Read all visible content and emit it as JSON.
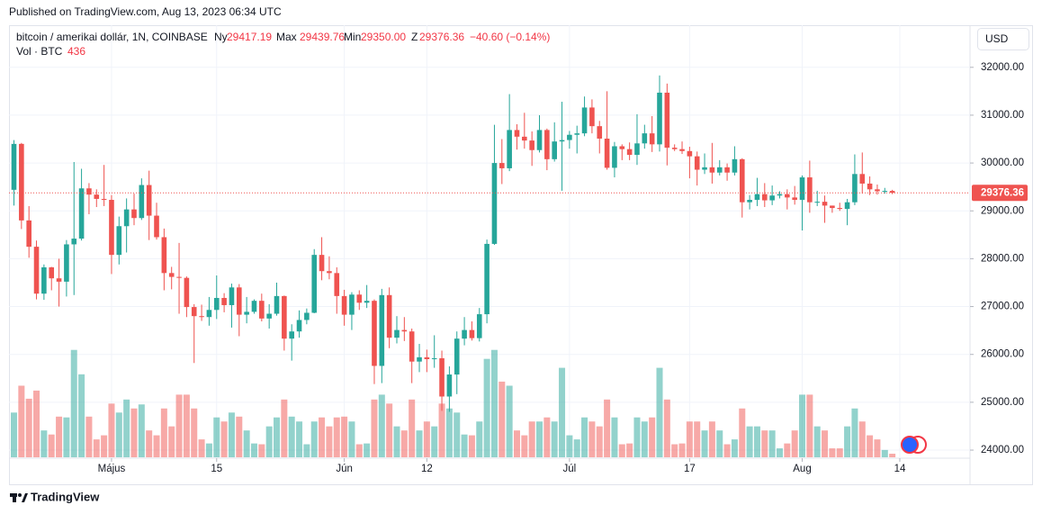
{
  "chart_data": {
    "type": "candlestick",
    "published": "Published on TradingView.com, Aug 13, 2023 06:34 UTC",
    "title": "bitcoin / amerikai dollár, 1N, COINBASE",
    "legend_keys": [
      "Ny",
      "Max",
      "Min",
      "Z"
    ],
    "legend_values": [
      "29417.19",
      "29439.76",
      "29350.00",
      "29376.36"
    ],
    "change_label": "−40.60 (−0.14%)",
    "volume_title": "Vol · BTC",
    "volume_label": "436",
    "currency": "USD",
    "last_price_label": "29376.36",
    "brand": "TradingView",
    "up_color": "#26a69a",
    "down_color": "#ef5350",
    "grid": true,
    "ylim": [
      23850,
      32880
    ],
    "yticks": [
      {
        "value": 24000,
        "label": "24000.00"
      },
      {
        "value": 25000,
        "label": "25000.00"
      },
      {
        "value": 26000,
        "label": "26000.00"
      },
      {
        "value": 27000,
        "label": "27000.00"
      },
      {
        "value": 28000,
        "label": "28000.00"
      },
      {
        "value": 29000,
        "label": "29000.00"
      },
      {
        "value": 30000,
        "label": "30000.00"
      },
      {
        "value": 31000,
        "label": "31000.00"
      },
      {
        "value": 32000,
        "label": "32000.00"
      }
    ],
    "vlim": [
      0,
      13500
    ],
    "xticks": [
      {
        "value": "05-01",
        "label": "Május"
      },
      {
        "value": "05-15",
        "label": "15"
      },
      {
        "value": "06-01",
        "label": "Jún"
      },
      {
        "value": "06-12",
        "label": "12"
      },
      {
        "value": "07-01",
        "label": "Júl"
      },
      {
        "value": "07-17",
        "label": "17"
      },
      {
        "value": "08-01",
        "label": "Aug"
      },
      {
        "value": "08-14",
        "label": "14"
      }
    ],
    "x": [
      "04-18",
      "04-19",
      "04-20",
      "04-21",
      "04-22",
      "04-23",
      "04-24",
      "04-25",
      "04-26",
      "04-27",
      "04-28",
      "04-29",
      "04-30",
      "05-01",
      "05-02",
      "05-03",
      "05-04",
      "05-05",
      "05-06",
      "05-07",
      "05-08",
      "05-09",
      "05-10",
      "05-11",
      "05-12",
      "05-13",
      "05-14",
      "05-15",
      "05-16",
      "05-17",
      "05-18",
      "05-19",
      "05-20",
      "05-21",
      "05-22",
      "05-23",
      "05-24",
      "05-25",
      "05-26",
      "05-27",
      "05-28",
      "05-29",
      "05-30",
      "05-31",
      "06-01",
      "06-02",
      "06-03",
      "06-04",
      "06-05",
      "06-06",
      "06-07",
      "06-08",
      "06-09",
      "06-10",
      "06-11",
      "06-12",
      "06-13",
      "06-14",
      "06-15",
      "06-16",
      "06-17",
      "06-18",
      "06-19",
      "06-20",
      "06-21",
      "06-22",
      "06-23",
      "06-24",
      "06-25",
      "06-26",
      "06-27",
      "06-28",
      "06-29",
      "06-30",
      "07-01",
      "07-02",
      "07-03",
      "07-04",
      "07-05",
      "07-06",
      "07-07",
      "07-08",
      "07-09",
      "07-10",
      "07-11",
      "07-12",
      "07-13",
      "07-14",
      "07-15",
      "07-16",
      "07-17",
      "07-18",
      "07-19",
      "07-20",
      "07-21",
      "07-22",
      "07-23",
      "07-24",
      "07-25",
      "07-26",
      "07-27",
      "07-28",
      "07-29",
      "07-30",
      "07-31",
      "08-01",
      "08-02",
      "08-03",
      "08-04",
      "08-05",
      "08-06",
      "08-07",
      "08-08",
      "08-09",
      "08-10",
      "08-11",
      "08-12",
      "08-13"
    ],
    "open": [
      29440,
      30400,
      28800,
      28250,
      27270,
      27820,
      27590,
      27520,
      28300,
      28420,
      29470,
      29340,
      29250,
      29230,
      28080,
      28680,
      29030,
      28850,
      29540,
      28900,
      28450,
      27700,
      27620,
      27600,
      26990,
      26800,
      26780,
      26930,
      27180,
      27030,
      27400,
      26830,
      26890,
      27120,
      26750,
      26850,
      27220,
      26330,
      26480,
      26720,
      26870,
      28080,
      27740,
      27700,
      27220,
      26830,
      27250,
      27080,
      27120,
      25760,
      27240,
      26350,
      26510,
      26480,
      25850,
      25940,
      25900,
      25920,
      25120,
      25580,
      26330,
      26510,
      26340,
      26840,
      28310,
      30000,
      29890,
      30690,
      30550,
      30470,
      30270,
      30690,
      30080,
      30450,
      30480,
      30590,
      30620,
      31160,
      30770,
      30510,
      29900,
      30350,
      30290,
      30170,
      30410,
      30620,
      30390,
      31470,
      30320,
      30290,
      30250,
      30140,
      29860,
      29910,
      29800,
      29910,
      29800,
      30080,
      29180,
      29230,
      29350,
      29220,
      29320,
      29350,
      29280,
      29230,
      29700,
      29180,
      29190,
      29110,
      29060,
      29040,
      29180,
      29770,
      29570,
      29450,
      29410,
      29417.19
    ],
    "high": [
      30480,
      30420,
      29100,
      28380,
      27880,
      27830,
      28000,
      28390,
      30020,
      29880,
      29580,
      29450,
      29960,
      29330,
      28880,
      29260,
      29360,
      29680,
      29840,
      29170,
      28630,
      27830,
      28330,
      27630,
      27050,
      27040,
      27200,
      27650,
      27280,
      27480,
      27470,
      27200,
      27150,
      27270,
      27050,
      27500,
      27230,
      26630,
      26920,
      26960,
      28200,
      28450,
      28050,
      27820,
      27350,
      27300,
      27340,
      27450,
      27150,
      27370,
      27400,
      26800,
      26780,
      26540,
      26220,
      26100,
      26400,
      26080,
      25750,
      26480,
      26780,
      26690,
      26970,
      28400,
      30800,
      30500,
      31440,
      30810,
      31050,
      30660,
      31000,
      30720,
      30850,
      31280,
      30670,
      30780,
      31390,
      31330,
      30880,
      31500,
      30440,
      30390,
      30430,
      31020,
      30800,
      30980,
      31830,
      31660,
      30390,
      30450,
      30340,
      30240,
      30200,
      30420,
      30060,
      29990,
      30350,
      30100,
      29330,
      29690,
      29580,
      29530,
      29410,
      29450,
      29520,
      29740,
      30050,
      29420,
      29320,
      29110,
      29170,
      29250,
      30180,
      30220,
      29720,
      29550,
      29480,
      29439.76
    ],
    "low": [
      29110,
      28620,
      28020,
      27150,
      27140,
      27340,
      27000,
      27210,
      27240,
      28380,
      28930,
      29080,
      29100,
      27680,
      27880,
      28130,
      28700,
      28810,
      28390,
      28400,
      27340,
      27360,
      26850,
      26780,
      25820,
      26700,
      26600,
      26740,
      26880,
      26560,
      26380,
      26650,
      26850,
      26690,
      26540,
      26810,
      26080,
      25870,
      26350,
      26630,
      26860,
      27550,
      27570,
      26850,
      26600,
      26510,
      26930,
      26970,
      25380,
      25400,
      26130,
      26230,
      26280,
      25400,
      25630,
      25630,
      25720,
      24820,
      24800,
      25170,
      26190,
      26290,
      26270,
      26650,
      28290,
      29560,
      29830,
      30280,
      30300,
      29940,
      30220,
      29850,
      30030,
      29420,
      30300,
      30200,
      30560,
      30620,
      30200,
      29860,
      29700,
      30060,
      30060,
      29960,
      30300,
      30230,
      30240,
      29950,
      30250,
      30190,
      29680,
      29530,
      29770,
      29570,
      29740,
      29630,
      29740,
      28860,
      29030,
      29100,
      29080,
      29120,
      29260,
      29030,
      29130,
      28590,
      28960,
      29100,
      28750,
      28960,
      29000,
      28700,
      29120,
      29360,
      29330,
      29340,
      29360,
      29350
    ],
    "close": [
      30400,
      28800,
      28250,
      27270,
      27820,
      27590,
      27520,
      28300,
      28420,
      29470,
      29340,
      29250,
      29230,
      28080,
      28680,
      29030,
      28850,
      29540,
      28900,
      28450,
      27700,
      27620,
      27600,
      26990,
      26800,
      26780,
      26930,
      27180,
      27030,
      27400,
      26830,
      26890,
      27120,
      26750,
      26850,
      27220,
      26330,
      26480,
      26720,
      26870,
      28080,
      27740,
      27700,
      27220,
      26830,
      27250,
      27080,
      27120,
      25760,
      27240,
      26350,
      26510,
      26480,
      25850,
      25940,
      25900,
      25920,
      25120,
      25580,
      26330,
      26510,
      26340,
      26840,
      28310,
      30000,
      29890,
      30690,
      30550,
      30470,
      30270,
      30690,
      30080,
      30450,
      30480,
      30590,
      30620,
      31160,
      30770,
      30510,
      29900,
      30350,
      30290,
      30170,
      30410,
      30620,
      30390,
      31470,
      30320,
      30290,
      30250,
      30140,
      29860,
      29910,
      29800,
      29910,
      29800,
      30080,
      29180,
      29230,
      29350,
      29220,
      29320,
      29350,
      29280,
      29230,
      29700,
      29180,
      29190,
      29110,
      29060,
      29040,
      29180,
      29770,
      29570,
      29450,
      29410,
      29416.96,
      29376.36
    ],
    "volume": [
      5500,
      8800,
      7200,
      8200,
      3300,
      2800,
      5000,
      4900,
      13200,
      10200,
      5000,
      2200,
      2700,
      6600,
      5500,
      7100,
      6000,
      6500,
      3300,
      2700,
      6000,
      3800,
      7700,
      7700,
      6000,
      2200,
      1700,
      4900,
      4400,
      5500,
      5000,
      3300,
      1700,
      1600,
      3800,
      4900,
      7100,
      5000,
      4400,
      1600,
      4400,
      4900,
      3800,
      4900,
      5000,
      4400,
      1600,
      1700,
      7100,
      7700,
      6600,
      3800,
      3300,
      7100,
      3300,
      4400,
      3800,
      6600,
      6000,
      5500,
      2800,
      2700,
      4400,
      12100,
      13200,
      9300,
      8800,
      3300,
      2700,
      4400,
      4400,
      4900,
      4400,
      11000,
      2700,
      2200,
      4900,
      4400,
      3800,
      7100,
      4900,
      1600,
      1700,
      4900,
      4400,
      4900,
      11000,
      7100,
      1600,
      1700,
      4400,
      4400,
      3300,
      4400,
      3300,
      1600,
      2200,
      6000,
      3800,
      3800,
      3300,
      3300,
      1100,
      1700,
      3300,
      7700,
      7700,
      3800,
      3300,
      1100,
      1100,
      3800,
      6000,
      4400,
      2700,
      2200,
      900,
      436
    ]
  }
}
